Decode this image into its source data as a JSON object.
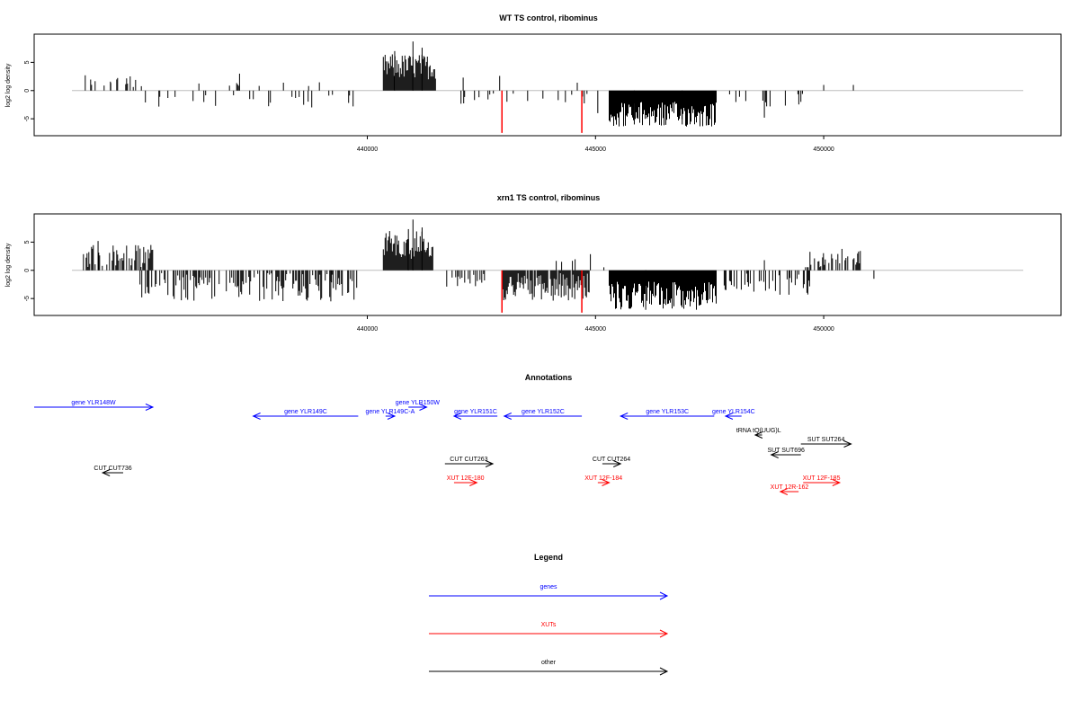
{
  "colors": {
    "gene": "#0000ff",
    "xut": "#ff0000",
    "other": "#000000",
    "zeroline": "#bebebe"
  },
  "chart_data": [
    {
      "type": "bar",
      "title": "WT TS control, ribominus",
      "ylabel": "log2 log density",
      "xlim": [
        432700,
        455200
      ],
      "ylim": [
        -8,
        10
      ],
      "xticks": [
        440000,
        445000,
        450000
      ],
      "xtick_labels": [
        "440000",
        "445000",
        "450000"
      ],
      "yticks": [
        -5,
        0,
        5
      ],
      "ytick_labels": [
        "-5",
        "0",
        "5"
      ],
      "grid": false,
      "zero_line": true,
      "density_regions": [
        {
          "from": 433700,
          "to": 435000,
          "sign": 1,
          "density": 0.25,
          "max": 3,
          "min": 0.5
        },
        {
          "from": 435000,
          "to": 439800,
          "sign": -1,
          "density": 0.12,
          "max": 3,
          "min": 0.5
        },
        {
          "from": 434300,
          "to": 439000,
          "sign": 1,
          "density": 0.03,
          "max": 1.5,
          "min": 0.5
        },
        {
          "from": 440350,
          "to": 441500,
          "sign": 1,
          "density": 1.0,
          "max": 6.5,
          "min": 2
        },
        {
          "from": 441600,
          "to": 442900,
          "sign": -1,
          "density": 0.06,
          "max": 2.5,
          "min": 0.5
        },
        {
          "from": 443000,
          "to": 445000,
          "sign": -1,
          "density": 0.08,
          "max": 2.5,
          "min": 0.5
        },
        {
          "from": 445300,
          "to": 447650,
          "sign": -1,
          "density": 1.0,
          "max": 6.5,
          "min": 2
        },
        {
          "from": 447800,
          "to": 449600,
          "sign": -1,
          "density": 0.07,
          "max": 3,
          "min": 0.5
        }
      ],
      "bars": [
        {
          "x": 441000,
          "y": 8.7
        },
        {
          "x": 441200,
          "y": 7.6
        },
        {
          "x": 440600,
          "y": 7.0
        },
        {
          "x": 442100,
          "y": 2.3
        },
        {
          "x": 442900,
          "y": 2.6
        },
        {
          "x": 444600,
          "y": 1.4
        },
        {
          "x": 437200,
          "y": 3.0
        },
        {
          "x": 450000,
          "y": 1.0
        },
        {
          "x": 450650,
          "y": 1.0
        },
        {
          "x": 445850,
          "y": -6.0
        },
        {
          "x": 446900,
          "y": -6.0
        },
        {
          "x": 448700,
          "y": -4.8
        },
        {
          "x": 448750,
          "y": -2.8
        },
        {
          "x": 449500,
          "y": -2.0
        },
        {
          "x": 445050,
          "y": -4.0
        }
      ],
      "highlight_bars": [
        {
          "x": 442950,
          "y": -7.5,
          "color": "#ff0000"
        },
        {
          "x": 444700,
          "y": -7.5,
          "color": "#ff0000"
        }
      ]
    },
    {
      "type": "bar",
      "title": "xrn1 TS control, ribominus",
      "ylabel": "log2 log density",
      "xlim": [
        432700,
        455200
      ],
      "ylim": [
        -8,
        10
      ],
      "xticks": [
        440000,
        445000,
        450000
      ],
      "xtick_labels": [
        "440000",
        "445000",
        "450000"
      ],
      "yticks": [
        -5,
        0,
        5
      ],
      "ytick_labels": [
        "-5",
        "0",
        "5"
      ],
      "grid": false,
      "zero_line": true,
      "density_regions": [
        {
          "from": 433700,
          "to": 435300,
          "sign": 1,
          "density": 0.5,
          "max": 4.5,
          "min": 0.5
        },
        {
          "from": 435000,
          "to": 439800,
          "sign": -1,
          "density": 0.55,
          "max": 5.5,
          "min": 0.5
        },
        {
          "from": 440350,
          "to": 441450,
          "sign": 1,
          "density": 1.0,
          "max": 7,
          "min": 2
        },
        {
          "from": 441700,
          "to": 442600,
          "sign": -1,
          "density": 0.3,
          "max": 3,
          "min": 0.5
        },
        {
          "from": 442950,
          "to": 444900,
          "sign": -1,
          "density": 0.85,
          "max": 5.5,
          "min": 0.5
        },
        {
          "from": 444100,
          "to": 445200,
          "sign": 1,
          "density": 0.1,
          "max": 3,
          "min": 0.5
        },
        {
          "from": 445300,
          "to": 447650,
          "sign": -1,
          "density": 1.0,
          "max": 7,
          "min": 2
        },
        {
          "from": 447800,
          "to": 449700,
          "sign": -1,
          "density": 0.35,
          "max": 4.5,
          "min": 0.5
        },
        {
          "from": 449600,
          "to": 451100,
          "sign": 1,
          "density": 0.35,
          "max": 3.5,
          "min": 0.5
        }
      ],
      "bars": [
        {
          "x": 441000,
          "y": 9.0
        },
        {
          "x": 440900,
          "y": 7.3
        },
        {
          "x": 441200,
          "y": 7.6
        },
        {
          "x": 434100,
          "y": 5.2
        },
        {
          "x": 450400,
          "y": 3.8
        },
        {
          "x": 448700,
          "y": 1.8
        },
        {
          "x": 439200,
          "y": -5.5
        },
        {
          "x": 446100,
          "y": -7.0
        },
        {
          "x": 451100,
          "y": -1.5
        }
      ],
      "highlight_bars": [
        {
          "x": 442950,
          "y": -7.5,
          "color": "#ff0000"
        },
        {
          "x": 444700,
          "y": -7.5,
          "color": "#ff0000"
        }
      ]
    }
  ],
  "annotations": {
    "title": "Annotations",
    "features": [
      {
        "label": "gene YLR148W",
        "kind": "gene",
        "start": 432700,
        "end": 435300,
        "row": 0
      },
      {
        "label": "gene YLR149C",
        "kind": "gene",
        "start": 437500,
        "end": 439800,
        "row": 1
      },
      {
        "label": "gene YLR149C-A",
        "kind": "gene",
        "start": 440400,
        "end": 440600,
        "row": 1
      },
      {
        "label": "gene YLR150W",
        "kind": "gene",
        "start": 440900,
        "end": 441300,
        "row": 0
      },
      {
        "label": "gene YLR151C",
        "kind": "gene",
        "start": 441900,
        "end": 442850,
        "row": 1
      },
      {
        "label": "gene YLR152C",
        "kind": "gene",
        "start": 443000,
        "end": 444700,
        "row": 1
      },
      {
        "label": "gene YLR153C",
        "kind": "gene",
        "start": 445550,
        "end": 447600,
        "row": 1
      },
      {
        "label": "gene YLR154C",
        "kind": "gene",
        "start": 447850,
        "end": 448200,
        "row": 1
      },
      {
        "label": "tRNA tQ(UUG)L",
        "kind": "other",
        "start": 448500,
        "end": 448650,
        "row": 2
      },
      {
        "label": "SUT SUT264",
        "kind": "other",
        "start": 449500,
        "end": 450600,
        "row": 3
      },
      {
        "label": "SUT SUT696",
        "kind": "other",
        "start": 448850,
        "end": 449500,
        "row": 4
      },
      {
        "label": "CUT CUT263",
        "kind": "other",
        "start": 441700,
        "end": 442750,
        "row": 5
      },
      {
        "label": "CUT CUT264",
        "kind": "other",
        "start": 445150,
        "end": 445550,
        "row": 5
      },
      {
        "label": "CUT CUT736",
        "kind": "other",
        "start": 434200,
        "end": 434650,
        "row": 6
      },
      {
        "label": "XUT 12F-180",
        "kind": "xut",
        "start": 441900,
        "end": 442400,
        "row": 7
      },
      {
        "label": "XUT 12F-184",
        "kind": "xut",
        "start": 445050,
        "end": 445300,
        "row": 7
      },
      {
        "label": "XUT 12F-185",
        "kind": "xut",
        "start": 449550,
        "end": 450350,
        "row": 7
      },
      {
        "label": "XUT 12R-162",
        "kind": "xut",
        "start": 449050,
        "end": 449450,
        "row": 8
      }
    ]
  },
  "legend": {
    "title": "Legend",
    "items": [
      {
        "label": "genes",
        "kind": "gene"
      },
      {
        "label": "XUTs",
        "kind": "xut"
      },
      {
        "label": "other",
        "kind": "other"
      }
    ]
  }
}
